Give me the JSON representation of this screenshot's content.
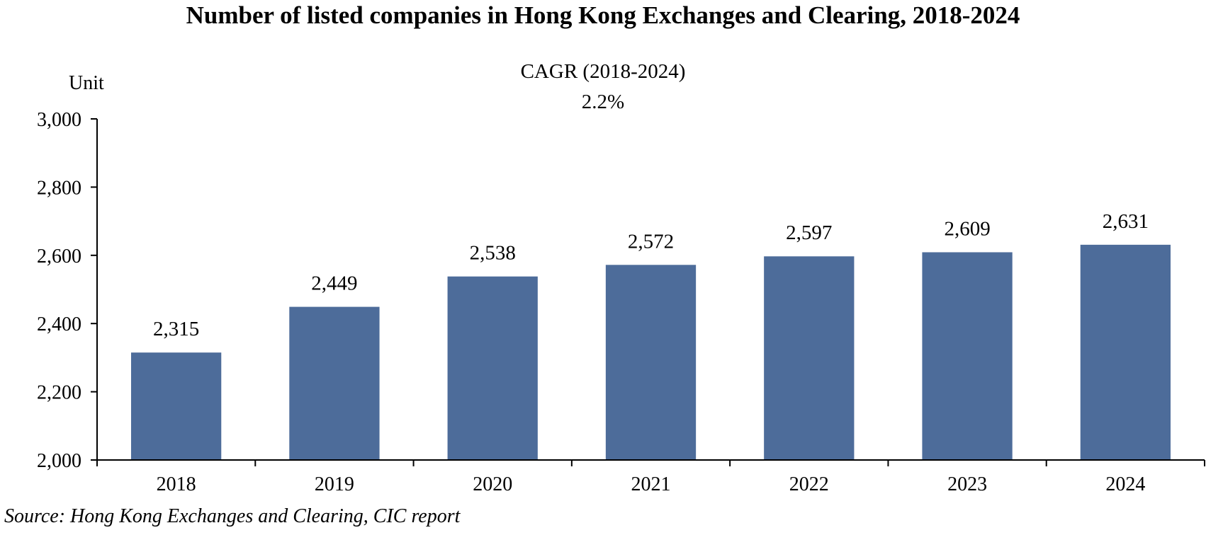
{
  "chart_data": {
    "type": "bar",
    "title": "Number of listed companies in Hong Kong Exchanges and Clearing, 2018-2024",
    "ylabel": "Unit",
    "xlabel": "",
    "categories": [
      "2018",
      "2019",
      "2020",
      "2021",
      "2022",
      "2023",
      "2024"
    ],
    "values": [
      2315,
      2449,
      2538,
      2572,
      2597,
      2609,
      2631
    ],
    "value_labels": [
      "2,315",
      "2,449",
      "2,538",
      "2,572",
      "2,597",
      "2,609",
      "2,631"
    ],
    "ylim": [
      2000,
      3000
    ],
    "yticks": [
      2000,
      2200,
      2400,
      2600,
      2800,
      3000
    ],
    "ytick_labels": [
      "2,000",
      "2,200",
      "2,400",
      "2,600",
      "2,800",
      "3,000"
    ],
    "annotation": {
      "line1": "CAGR (2018-2024)",
      "line2": "2.2%"
    },
    "grid": false,
    "legend": "none",
    "bar_color": "#4d6c9a"
  },
  "source": "Source: Hong Kong Exchanges and Clearing, CIC report"
}
